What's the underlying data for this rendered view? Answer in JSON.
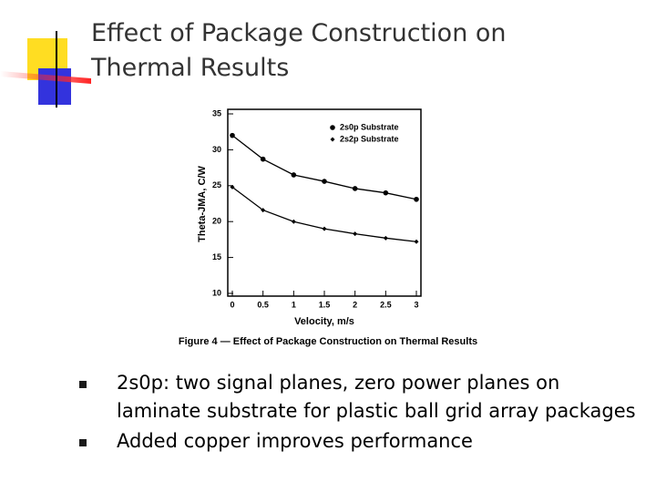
{
  "title": "Effect of Package Construction on Thermal Results",
  "bullets": [
    "2s0p: two signal planes, zero power planes on laminate substrate for plastic ball grid array packages",
    "Added copper improves performance"
  ],
  "chart_data": {
    "type": "line",
    "caption": "Figure 4 — Effect of Package Construction on Thermal Results",
    "x_label": "Velocity, m/s",
    "y_label": "Theta-JMA, C/W",
    "x": [
      0,
      0.5,
      1,
      1.5,
      2,
      2.5,
      3
    ],
    "series": [
      {
        "name": "2s0p Substrate",
        "color": "#000000",
        "marker": "circle",
        "values": [
          32,
          28.7,
          26.5,
          25.6,
          24.6,
          24.0,
          23.1
        ]
      },
      {
        "name": "2s2p Substrate",
        "color": "#000000",
        "marker": "diamond",
        "values": [
          24.8,
          21.6,
          20.0,
          19.0,
          18.3,
          17.7,
          17.2
        ]
      }
    ],
    "xlim": [
      0,
      3
    ],
    "xticks": [
      0,
      0.5,
      1,
      1.5,
      2,
      2.5,
      3
    ],
    "ylim": [
      10,
      35
    ],
    "yticks": [
      10,
      15,
      20,
      25,
      30,
      35
    ],
    "grid": false,
    "legend": "upper right"
  }
}
